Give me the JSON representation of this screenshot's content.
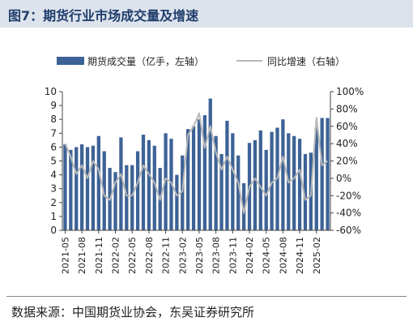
{
  "title": "图7：期货行业市场成交量及增速",
  "source": "数据来源：中国期货业协会，东吴证券研究所",
  "colors": {
    "bar": "#3d6296",
    "line": "#b8b8b8",
    "title_bg": "#dde3ec",
    "title_text": "#1f3d6b"
  },
  "chart_data": {
    "type": "bar",
    "categories": [
      "2021-05",
      "2021-06",
      "2021-07",
      "2021-08",
      "2021-09",
      "2021-10",
      "2021-11",
      "2021-12",
      "2022-01",
      "2022-02",
      "2022-03",
      "2022-04",
      "2022-05",
      "2022-06",
      "2022-07",
      "2022-08",
      "2022-09",
      "2022-10",
      "2022-11",
      "2022-12",
      "2023-01",
      "2023-02",
      "2023-03",
      "2023-04",
      "2023-05",
      "2023-06",
      "2023-07",
      "2023-08",
      "2023-09",
      "2023-10",
      "2023-11",
      "2023-12",
      "2024-01",
      "2024-02",
      "2024-03",
      "2024-04",
      "2024-05",
      "2024-06",
      "2024-07",
      "2024-08",
      "2024-09",
      "2024-10",
      "2024-11",
      "2024-12",
      "2025-01",
      "2025-02",
      "2025-03",
      "2025-04"
    ],
    "xtick_labels": [
      "2021-05",
      "2021-08",
      "2021-11",
      "2022-02",
      "2022-05",
      "2022-08",
      "2022-11",
      "2023-02",
      "2023-05",
      "2023-08",
      "2023-11",
      "2024-02",
      "2024-05",
      "2024-08",
      "2024-11",
      "2025-02"
    ],
    "series": [
      {
        "name": "期货成交量（亿手，左轴）",
        "axis": "left",
        "kind": "bar",
        "values": [
          6.2,
          5.8,
          6.0,
          6.2,
          6.0,
          6.1,
          6.8,
          5.7,
          4.5,
          4.2,
          6.7,
          4.7,
          4.7,
          5.7,
          6.9,
          6.5,
          6.1,
          4.5,
          7.0,
          6.6,
          4.0,
          5.4,
          7.3,
          7.5,
          8.0,
          8.3,
          9.5,
          6.8,
          5.5,
          7.9,
          7.0,
          5.4,
          3.4,
          6.3,
          6.5,
          7.2,
          5.8,
          7.1,
          7.4,
          8.0,
          7.0,
          6.8,
          6.6,
          5.5,
          5.6,
          7.4,
          8.1,
          8.1
        ]
      },
      {
        "name": "同比增速（右轴）",
        "axis": "right",
        "kind": "line",
        "values": [
          40,
          25,
          5,
          15,
          0,
          20,
          10,
          -20,
          -25,
          -5,
          5,
          -20,
          -20,
          -5,
          15,
          5,
          -5,
          -25,
          0,
          -5,
          -20,
          -15,
          50,
          60,
          75,
          35,
          60,
          30,
          10,
          25,
          10,
          -5,
          -40,
          -10,
          0,
          -10,
          -20,
          -5,
          0,
          25,
          -5,
          0,
          10,
          -25,
          -20,
          70,
          15,
          20
        ]
      }
    ],
    "ylim_left": [
      0,
      10
    ],
    "yticks_left": [
      "0",
      "1",
      "2",
      "3",
      "4",
      "5",
      "6",
      "7",
      "8",
      "9",
      "10"
    ],
    "ylim_right": [
      -60,
      100
    ],
    "yticks_right": [
      "-60%",
      "-40%",
      "-20%",
      "0%",
      "20%",
      "40%",
      "60%",
      "80%",
      "100%"
    ],
    "grid": false,
    "legend": "top"
  }
}
